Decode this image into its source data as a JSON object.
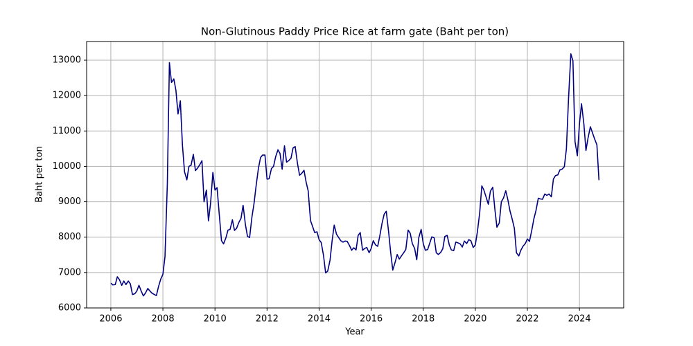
{
  "chart_data": {
    "type": "line",
    "title": "Non-Glutinous Paddy Price Rice at farm gate (Baht per ton)",
    "xlabel": "Year",
    "ylabel": "Baht per ton",
    "xlim": [
      2005.07,
      2025.7
    ],
    "ylim": [
      6000,
      13528
    ],
    "xticks": [
      2006,
      2008,
      2010,
      2012,
      2014,
      2016,
      2018,
      2020,
      2022,
      2024
    ],
    "yticks": [
      6000,
      7000,
      8000,
      9000,
      10000,
      11000,
      12000,
      13000
    ],
    "grid": true,
    "x": [
      2006.0,
      2006.08,
      2006.17,
      2006.25,
      2006.33,
      2006.42,
      2006.5,
      2006.58,
      2006.67,
      2006.75,
      2006.83,
      2006.92,
      2007.0,
      2007.08,
      2007.17,
      2007.25,
      2007.33,
      2007.42,
      2007.5,
      2007.58,
      2007.67,
      2007.75,
      2007.83,
      2007.92,
      2008.0,
      2008.08,
      2008.17,
      2008.25,
      2008.33,
      2008.42,
      2008.5,
      2008.58,
      2008.67,
      2008.75,
      2008.83,
      2008.92,
      2009.0,
      2009.08,
      2009.17,
      2009.25,
      2009.33,
      2009.42,
      2009.5,
      2009.58,
      2009.67,
      2009.75,
      2009.83,
      2009.92,
      2010.0,
      2010.08,
      2010.17,
      2010.25,
      2010.33,
      2010.42,
      2010.5,
      2010.58,
      2010.67,
      2010.75,
      2010.83,
      2010.92,
      2011.0,
      2011.08,
      2011.17,
      2011.25,
      2011.33,
      2011.42,
      2011.5,
      2011.58,
      2011.67,
      2011.75,
      2011.83,
      2011.92,
      2012.0,
      2012.08,
      2012.17,
      2012.25,
      2012.33,
      2012.42,
      2012.5,
      2012.58,
      2012.67,
      2012.75,
      2012.83,
      2012.92,
      2013.0,
      2013.08,
      2013.17,
      2013.25,
      2013.33,
      2013.42,
      2013.5,
      2013.58,
      2013.67,
      2013.75,
      2013.83,
      2013.92,
      2014.0,
      2014.08,
      2014.17,
      2014.25,
      2014.33,
      2014.42,
      2014.5,
      2014.58,
      2014.67,
      2014.75,
      2014.83,
      2014.92,
      2015.0,
      2015.08,
      2015.17,
      2015.25,
      2015.33,
      2015.42,
      2015.5,
      2015.58,
      2015.67,
      2015.75,
      2015.83,
      2015.92,
      2016.0,
      2016.08,
      2016.17,
      2016.25,
      2016.33,
      2016.42,
      2016.5,
      2016.58,
      2016.67,
      2016.75,
      2016.83,
      2016.92,
      2017.0,
      2017.08,
      2017.17,
      2017.25,
      2017.33,
      2017.42,
      2017.5,
      2017.58,
      2017.67,
      2017.75,
      2017.83,
      2017.92,
      2018.0,
      2018.08,
      2018.17,
      2018.25,
      2018.33,
      2018.42,
      2018.5,
      2018.58,
      2018.67,
      2018.75,
      2018.83,
      2018.92,
      2019.0,
      2019.08,
      2019.17,
      2019.25,
      2019.33,
      2019.42,
      2019.5,
      2019.58,
      2019.67,
      2019.75,
      2019.83,
      2019.92,
      2020.0,
      2020.08,
      2020.17,
      2020.25,
      2020.33,
      2020.42,
      2020.5,
      2020.58,
      2020.67,
      2020.75,
      2020.83,
      2020.92,
      2021.0,
      2021.08,
      2021.17,
      2021.25,
      2021.33,
      2021.42,
      2021.5,
      2021.58,
      2021.67,
      2021.75,
      2021.83,
      2021.92,
      2022.0,
      2022.08,
      2022.17,
      2022.25,
      2022.33,
      2022.42,
      2022.5,
      2022.58,
      2022.67,
      2022.75,
      2022.83,
      2022.92,
      2023.0,
      2023.08,
      2023.17,
      2023.25,
      2023.33,
      2023.42,
      2023.5,
      2023.58,
      2023.67,
      2023.75,
      2023.83,
      2023.92,
      2024.0,
      2024.08,
      2024.17,
      2024.25,
      2024.33,
      2024.42,
      2024.5,
      2024.58,
      2024.67,
      2024.75
    ],
    "series": [
      {
        "color": "#000080",
        "values": [
          6700,
          6650,
          6660,
          6880,
          6800,
          6640,
          6760,
          6660,
          6760,
          6680,
          6380,
          6400,
          6480,
          6640,
          6470,
          6340,
          6420,
          6550,
          6480,
          6420,
          6380,
          6350,
          6600,
          6820,
          6950,
          7450,
          9500,
          12930,
          12370,
          12470,
          12150,
          11480,
          11850,
          10600,
          9850,
          9620,
          10000,
          10030,
          10340,
          9880,
          9950,
          10050,
          10160,
          9000,
          9330,
          8460,
          8950,
          9830,
          9330,
          9400,
          8600,
          7900,
          7810,
          7980,
          8200,
          8220,
          8490,
          8190,
          8250,
          8420,
          8530,
          8900,
          8350,
          8020,
          7990,
          8570,
          8950,
          9450,
          9950,
          10250,
          10320,
          10320,
          9640,
          9650,
          9940,
          10000,
          10270,
          10470,
          10360,
          9920,
          10580,
          10120,
          10160,
          10230,
          10520,
          10560,
          10080,
          9750,
          9800,
          9890,
          9560,
          9310,
          8470,
          8300,
          8130,
          8150,
          7930,
          7850,
          7480,
          6990,
          7040,
          7350,
          7900,
          8340,
          8080,
          7990,
          7900,
          7860,
          7890,
          7880,
          7760,
          7630,
          7700,
          7640,
          8050,
          8130,
          7630,
          7680,
          7710,
          7560,
          7680,
          7900,
          7780,
          7740,
          8030,
          8400,
          8650,
          8730,
          8150,
          7560,
          7070,
          7290,
          7510,
          7380,
          7480,
          7560,
          7650,
          8200,
          8110,
          7820,
          7680,
          7360,
          7990,
          8220,
          7820,
          7630,
          7650,
          7830,
          8010,
          7980,
          7560,
          7510,
          7570,
          7670,
          8020,
          8050,
          7780,
          7640,
          7620,
          7860,
          7840,
          7810,
          7720,
          7890,
          7820,
          7930,
          7900,
          7710,
          7780,
          8150,
          8700,
          9450,
          9330,
          9120,
          8930,
          9300,
          9410,
          8800,
          8280,
          8400,
          9000,
          9100,
          9310,
          9060,
          8750,
          8500,
          8250,
          7560,
          7470,
          7630,
          7740,
          7820,
          7950,
          7880,
          8200,
          8520,
          8750,
          9100,
          9080,
          9070,
          9220,
          9180,
          9220,
          9140,
          9640,
          9740,
          9760,
          9900,
          9920,
          9990,
          10500,
          11900,
          13180,
          12980,
          10700,
          10300,
          11200,
          11770,
          11200,
          10450,
          10800,
          11120,
          10950,
          10780,
          10610,
          9610
        ]
      }
    ]
  }
}
